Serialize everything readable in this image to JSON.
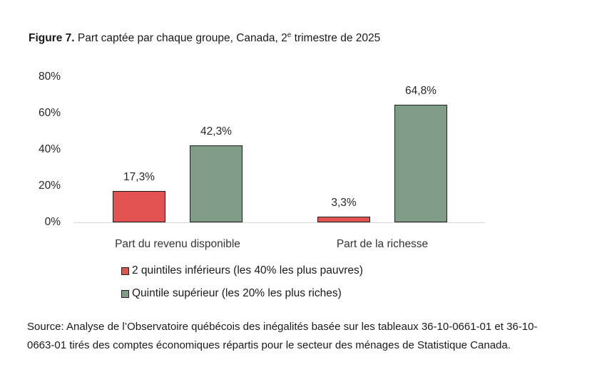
{
  "title": {
    "prefix": "Figure 7.",
    "text_before_sup": " Part captée par chaque groupe, Canada, 2",
    "superscript": "e",
    "text_after_sup": " trimestre de 2025"
  },
  "chart_data": {
    "type": "bar",
    "categories": [
      "Part du revenu disponible",
      "Part de la richesse"
    ],
    "series": [
      {
        "name": "2 quintiles inférieurs (les 40% les plus pauvres)",
        "values": [
          17.3,
          3.3
        ],
        "value_labels": [
          "17,3%",
          "3,3%"
        ],
        "color": "#e15251"
      },
      {
        "name": "Quintile supérieur (les 20% les plus riches)",
        "values": [
          42.3,
          64.8
        ],
        "value_labels": [
          "42,3%",
          "64,8%"
        ],
        "color": "#7f9c87"
      }
    ],
    "ylim": [
      0,
      80
    ],
    "yticks": [
      0,
      20,
      40,
      60,
      80
    ],
    "ytick_labels": [
      "0%",
      "20%",
      "40%",
      "60%",
      "80%"
    ],
    "grid": false,
    "legend_position": "bottom",
    "bar_border_color": "#1f1f1f",
    "axis_line_color": "#d9d9d9"
  },
  "source": {
    "lines": [
      "Source: Analyse de l’Observatoire québécois des inégalités basée sur les tableaux 36-10-0661-01 et 36-10-",
      "0663-01 tirés des comptes économiques répartis pour le secteur des ménages de Statistique Canada."
    ]
  }
}
